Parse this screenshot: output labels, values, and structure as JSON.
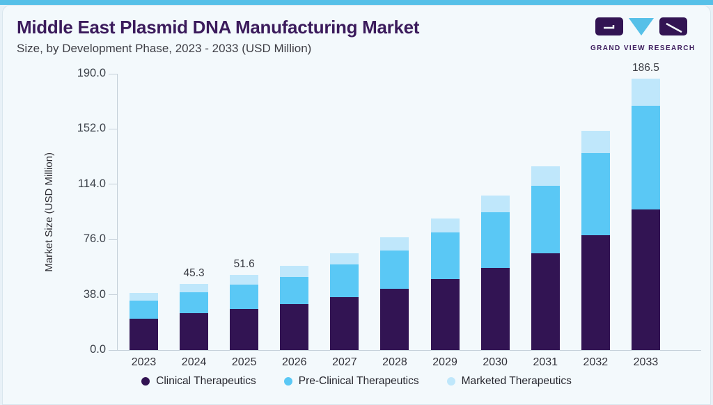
{
  "header": {
    "title": "Middle East Plasmid DNA Manufacturing Market",
    "subtitle": "Size, by Development Phase, 2023 - 2033 (USD Million)"
  },
  "logo": {
    "text": "GRAND VIEW RESEARCH"
  },
  "colors": {
    "accent_bar": "#56c0e8",
    "title_purple": "#3b1b5c",
    "axis_line": "#c4cfd8",
    "card_background": "#f3f9fc"
  },
  "chart_data": {
    "type": "bar",
    "stacked": true,
    "title": "Middle East Plasmid DNA Manufacturing Market Size, by Development Phase, 2023 - 2033 (USD Million)",
    "xlabel": "",
    "ylabel": "Market Size (USD Million)",
    "ylim": [
      0,
      190
    ],
    "ytick_values": [
      0,
      38,
      76,
      114,
      152,
      190
    ],
    "ytick_labels": [
      "0.0",
      "38.0",
      "76.0",
      "114.0",
      "152.0",
      "190.0"
    ],
    "grid": false,
    "legend_position": "bottom",
    "categories": [
      "2023",
      "2024",
      "2025",
      "2026",
      "2027",
      "2028",
      "2029",
      "2030",
      "2031",
      "2032",
      "2033"
    ],
    "series": [
      {
        "name": "Clinical Therapeutics",
        "color": "#321453",
        "values": [
          21.4,
          25.2,
          28.3,
          31.7,
          36.2,
          42.0,
          48.8,
          56.7,
          66.7,
          79.0,
          96.8
        ]
      },
      {
        "name": "Pre-Clinical Therapeutics",
        "color": "#5ac8f5",
        "values": [
          12.4,
          14.3,
          16.7,
          18.7,
          22.5,
          26.3,
          32.1,
          37.9,
          46.3,
          56.3,
          71.0
        ]
      },
      {
        "name": "Marketed Therapeutics",
        "color": "#bfe7fb",
        "values": [
          5.3,
          5.8,
          6.6,
          7.4,
          7.9,
          9.2,
          9.7,
          11.8,
          13.4,
          15.5,
          18.7
        ]
      }
    ],
    "totals": [
      39.1,
      45.3,
      51.6,
      57.8,
      66.6,
      77.5,
      90.6,
      106.4,
      126.4,
      150.8,
      186.5
    ],
    "value_labels": [
      "",
      "45.3",
      "51.6",
      "",
      "",
      "",
      "",
      "",
      "",
      "",
      "186.5"
    ]
  }
}
